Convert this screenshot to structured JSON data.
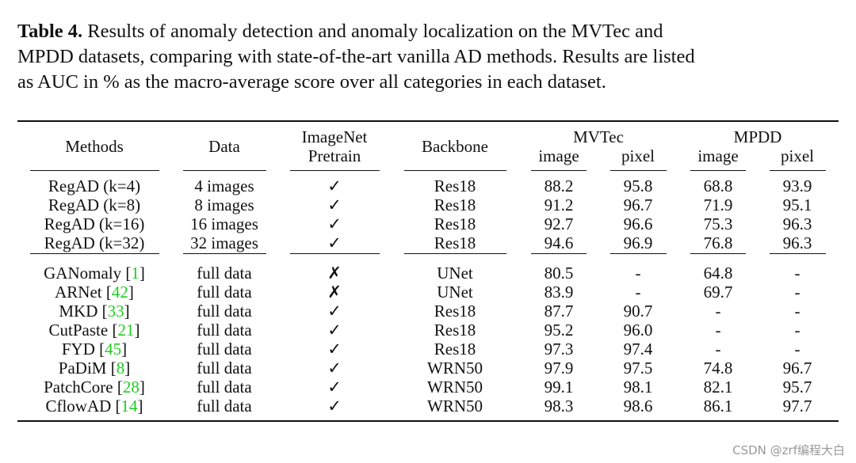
{
  "caption": {
    "label": "Table 4.",
    "lines": [
      "Results of anomaly detection and anomaly localization on the MVTec and",
      "MPDD datasets, comparing with state-of-the-art vanilla AD methods. Results are listed",
      "as AUC in % as the macro-average score over all categories in each dataset."
    ]
  },
  "table": {
    "header": {
      "methods": "Methods",
      "data": "Data",
      "pretrain": [
        "ImageNet",
        "Pretrain"
      ],
      "backbone": "Backbone",
      "groups": [
        {
          "name": "MVTec",
          "sub": [
            "image",
            "pixel"
          ]
        },
        {
          "name": "MPDD",
          "sub": [
            "image",
            "pixel"
          ]
        }
      ]
    },
    "cite_open": "[",
    "cite_close": "]",
    "sections": [
      [
        {
          "method": "RegAD (k=4)",
          "cells": [
            "4 images",
            "✓",
            "Res18",
            "88.2",
            "95.8",
            "68.8",
            "93.9"
          ]
        },
        {
          "method": "RegAD (k=8)",
          "cells": [
            "8 images",
            "✓",
            "Res18",
            "91.2",
            "96.7",
            "71.9",
            "95.1"
          ]
        },
        {
          "method": "RegAD (k=16)",
          "cells": [
            "16 images",
            "✓",
            "Res18",
            "92.7",
            "96.6",
            "75.3",
            "96.3"
          ]
        },
        {
          "method": "RegAD (k=32)",
          "cells": [
            "32 images",
            "✓",
            "Res18",
            "94.6",
            "96.9",
            "76.8",
            "96.3"
          ]
        }
      ],
      [
        {
          "method": "GANomaly",
          "ref": "1",
          "cells": [
            "full data",
            "✗",
            "UNet",
            "80.5",
            "-",
            "64.8",
            "-"
          ]
        },
        {
          "method": "ARNet",
          "ref": "42",
          "cells": [
            "full data",
            "✗",
            "UNet",
            "83.9",
            "-",
            "69.7",
            "-"
          ]
        },
        {
          "method": "MKD",
          "ref": "33",
          "cells": [
            "full data",
            "✓",
            "Res18",
            "87.7",
            "90.7",
            "-",
            "-"
          ]
        },
        {
          "method": "CutPaste",
          "ref": "21",
          "cells": [
            "full data",
            "✓",
            "Res18",
            "95.2",
            "96.0",
            "-",
            "-"
          ]
        },
        {
          "method": "FYD",
          "ref": "45",
          "cells": [
            "full data",
            "✓",
            "Res18",
            "97.3",
            "97.4",
            "-",
            "-"
          ]
        },
        {
          "method": "PaDiM",
          "ref": "8",
          "cells": [
            "full data",
            "✓",
            "WRN50",
            "97.9",
            "97.5",
            "74.8",
            "96.7"
          ]
        },
        {
          "method": "PatchCore",
          "ref": "28",
          "cells": [
            "full data",
            "✓",
            "WRN50",
            "99.1",
            "98.1",
            "82.1",
            "95.7"
          ]
        },
        {
          "method": "CflowAD",
          "ref": "14",
          "cells": [
            "full data",
            "✓",
            "WRN50",
            "98.3",
            "98.6",
            "86.1",
            "97.7"
          ]
        }
      ]
    ]
  },
  "watermark": "CSDN @zrf编程大白"
}
